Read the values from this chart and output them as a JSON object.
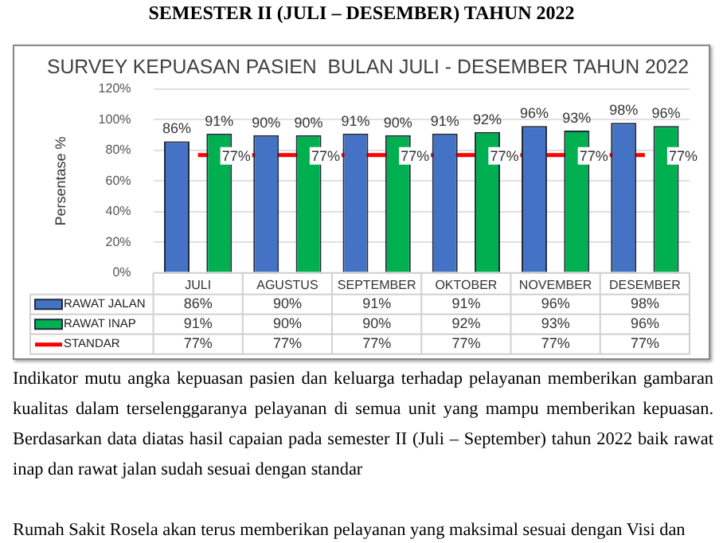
{
  "chart_data": {
    "type": "bar",
    "title": "SURVEY KEPUASAN PASIEN  BULAN JULI - DESEMBER TAHUN 2022",
    "ylabel": "Persentase %",
    "categories": [
      "JULI",
      "AGUSTUS",
      "SEPTEMBER",
      "OKTOBER",
      "NOVEMBER",
      "DESEMBER"
    ],
    "series": [
      {
        "name": "RAWAT JALAN",
        "color": "#4472c4",
        "values": [
          86,
          90,
          91,
          91,
          96,
          98
        ],
        "value_labels": [
          "86%",
          "90%",
          "91%",
          "91%",
          "96%",
          "98%"
        ]
      },
      {
        "name": "RAWAT INAP",
        "color": "#00b050",
        "values": [
          91,
          90,
          90,
          92,
          93,
          96
        ],
        "value_labels": [
          "91%",
          "90%",
          "90%",
          "92%",
          "93%",
          "96%"
        ]
      },
      {
        "name": "STANDAR",
        "type": "line",
        "color": "#ff0000",
        "values": [
          77,
          77,
          77,
          77,
          77,
          77
        ],
        "value_labels": [
          "77%",
          "77%",
          "77%",
          "77%",
          "77%",
          "77%"
        ]
      }
    ],
    "ylim": [
      0,
      120
    ],
    "yticks": [
      {
        "value": 0,
        "label": "0%"
      },
      {
        "value": 20,
        "label": "20%"
      },
      {
        "value": 40,
        "label": "40%"
      },
      {
        "value": 60,
        "label": "60%"
      },
      {
        "value": 80,
        "label": "80%"
      },
      {
        "value": 100,
        "label": "100%"
      },
      {
        "value": 120,
        "label": "120%"
      }
    ],
    "grid": "y",
    "legend": "bottom",
    "marker": "none",
    "line_style": "solid",
    "annotations": [
      "SEMESTER II (JULI – DESEMBER) TAHUN 2022",
      "Indikator mutu angka kepuasan pasien dan keluarga terhadap pelayanan memberikan gambaran kualitas dalam terselenggaranya pelayanan di semua unit yang mampu memberikan kepuasan. Berdasarkan data diatas hasil capaian pada semester II (Juli – September) tahun 2022 baik rawat inap dan rawat jalan sudah sesuai dengan standar",
      "Rumah Sakit Rosela akan terus memberikan pelayanan yang maksimal sesuai dengan Visi dan"
    ]
  }
}
